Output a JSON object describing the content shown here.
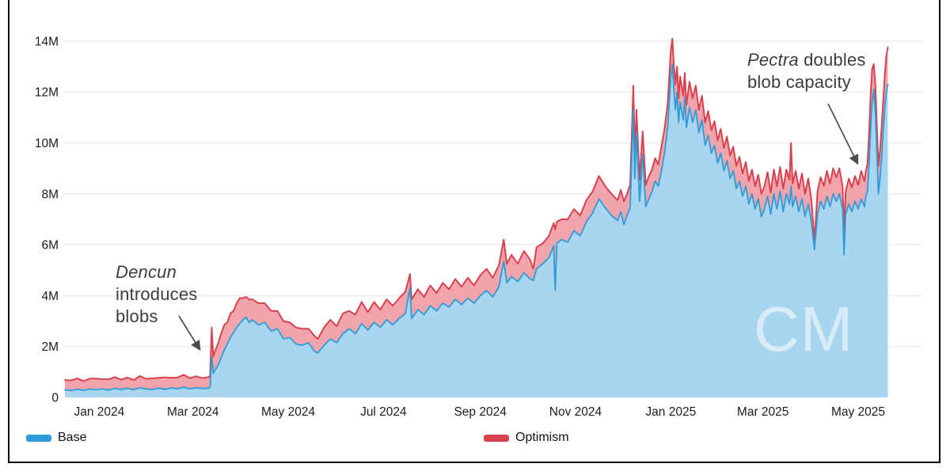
{
  "chart_data": {
    "type": "area",
    "stacked": true,
    "x_unit": "days since Jan 1, 2024",
    "y_unit": "transactions (millions)",
    "ylim": [
      0,
      14.5
    ],
    "grid": "horizontal only",
    "legend_position": "bottom",
    "series_names": [
      "Base",
      "Optimism"
    ],
    "x_ticks": [
      {
        "day": 0,
        "label": "Jan 2024"
      },
      {
        "day": 60,
        "label": "Mar 2024"
      },
      {
        "day": 121,
        "label": "May 2024"
      },
      {
        "day": 182,
        "label": "Jul 2024"
      },
      {
        "day": 244,
        "label": "Sep 2024"
      },
      {
        "day": 305,
        "label": "Nov 2024"
      },
      {
        "day": 366,
        "label": "Jan 2025"
      },
      {
        "day": 425,
        "label": "Mar 2025"
      },
      {
        "day": 486,
        "label": "May 2025"
      }
    ],
    "y_ticks": [
      {
        "value": 0,
        "label": "0"
      },
      {
        "value": 2,
        "label": "2M"
      },
      {
        "value": 4,
        "label": "4M"
      },
      {
        "value": 6,
        "label": "6M"
      },
      {
        "value": 8,
        "label": "8M"
      },
      {
        "value": 10,
        "label": "10M"
      },
      {
        "value": 12,
        "label": "12M"
      },
      {
        "value": 14,
        "label": "14M"
      }
    ],
    "points": [
      [
        -22,
        0.3,
        0.38
      ],
      [
        -18,
        0.27,
        0.4
      ],
      [
        -14,
        0.32,
        0.43
      ],
      [
        -10,
        0.28,
        0.36
      ],
      [
        -6,
        0.33,
        0.41
      ],
      [
        -2,
        0.3,
        0.44
      ],
      [
        2,
        0.34,
        0.38
      ],
      [
        6,
        0.29,
        0.42
      ],
      [
        10,
        0.35,
        0.45
      ],
      [
        14,
        0.31,
        0.39
      ],
      [
        18,
        0.36,
        0.42
      ],
      [
        22,
        0.3,
        0.38
      ],
      [
        26,
        0.38,
        0.46
      ],
      [
        30,
        0.33,
        0.4
      ],
      [
        34,
        0.31,
        0.44
      ],
      [
        38,
        0.36,
        0.41
      ],
      [
        42,
        0.32,
        0.47
      ],
      [
        46,
        0.37,
        0.4
      ],
      [
        50,
        0.34,
        0.44
      ],
      [
        54,
        0.4,
        0.49
      ],
      [
        58,
        0.34,
        0.42
      ],
      [
        62,
        0.38,
        0.45
      ],
      [
        66,
        0.35,
        0.41
      ],
      [
        70,
        0.36,
        0.44
      ],
      [
        71,
        0.4,
        0.45
      ],
      [
        72,
        1.6,
        1.15
      ],
      [
        73,
        0.95,
        0.65
      ],
      [
        74,
        1.05,
        0.75
      ],
      [
        76,
        1.25,
        0.85
      ],
      [
        78,
        1.55,
        0.95
      ],
      [
        80,
        1.85,
        1.0
      ],
      [
        82,
        2.1,
        0.85
      ],
      [
        84,
        2.35,
        0.95
      ],
      [
        86,
        2.55,
        0.85
      ],
      [
        88,
        2.75,
        0.95
      ],
      [
        90,
        2.9,
        1.0
      ],
      [
        92,
        3.05,
        0.85
      ],
      [
        94,
        3.15,
        0.8
      ],
      [
        96,
        2.95,
        0.9
      ],
      [
        98,
        3.05,
        0.8
      ],
      [
        102,
        2.85,
        0.85
      ],
      [
        106,
        2.95,
        0.75
      ],
      [
        110,
        2.6,
        0.8
      ],
      [
        114,
        2.7,
        0.7
      ],
      [
        118,
        2.3,
        0.7
      ],
      [
        122,
        2.35,
        0.6
      ],
      [
        126,
        2.1,
        0.65
      ],
      [
        130,
        2.05,
        0.65
      ],
      [
        134,
        2.15,
        0.55
      ],
      [
        138,
        1.8,
        0.6
      ],
      [
        140,
        1.75,
        0.55
      ],
      [
        144,
        2.05,
        0.7
      ],
      [
        148,
        2.3,
        0.75
      ],
      [
        152,
        2.15,
        0.65
      ],
      [
        156,
        2.5,
        0.8
      ],
      [
        160,
        2.7,
        0.7
      ],
      [
        164,
        2.5,
        0.75
      ],
      [
        168,
        2.9,
        0.85
      ],
      [
        172,
        2.65,
        0.7
      ],
      [
        176,
        2.95,
        0.8
      ],
      [
        180,
        2.75,
        0.7
      ],
      [
        184,
        3.05,
        0.8
      ],
      [
        188,
        2.85,
        0.75
      ],
      [
        192,
        3.1,
        0.8
      ],
      [
        196,
        3.3,
        0.85
      ],
      [
        199,
        4.3,
        0.55
      ],
      [
        200,
        3.1,
        0.75
      ],
      [
        204,
        3.45,
        0.8
      ],
      [
        208,
        3.25,
        0.7
      ],
      [
        212,
        3.6,
        0.8
      ],
      [
        216,
        3.4,
        0.7
      ],
      [
        220,
        3.7,
        0.8
      ],
      [
        224,
        3.55,
        0.7
      ],
      [
        228,
        3.85,
        0.8
      ],
      [
        232,
        3.65,
        0.7
      ],
      [
        236,
        3.9,
        0.8
      ],
      [
        240,
        3.7,
        0.7
      ],
      [
        244,
        4.0,
        0.8
      ],
      [
        248,
        4.2,
        0.85
      ],
      [
        252,
        3.95,
        0.75
      ],
      [
        256,
        4.35,
        0.85
      ],
      [
        259,
        5.35,
        0.85
      ],
      [
        261,
        4.5,
        0.75
      ],
      [
        264,
        4.75,
        0.85
      ],
      [
        268,
        4.55,
        0.7
      ],
      [
        272,
        4.9,
        0.85
      ],
      [
        276,
        4.65,
        0.75
      ],
      [
        278,
        4.6,
        0.45
      ],
      [
        280,
        5.05,
        0.85
      ],
      [
        284,
        5.25,
        0.8
      ],
      [
        288,
        5.5,
        0.85
      ],
      [
        291,
        5.95,
        0.9
      ],
      [
        292,
        4.2,
        2.4
      ],
      [
        293,
        6.05,
        0.85
      ],
      [
        296,
        6.2,
        0.8
      ],
      [
        300,
        6.1,
        0.9
      ],
      [
        304,
        6.55,
        0.85
      ],
      [
        308,
        6.35,
        0.8
      ],
      [
        312,
        6.9,
        0.85
      ],
      [
        316,
        7.25,
        0.85
      ],
      [
        320,
        7.8,
        0.9
      ],
      [
        324,
        7.45,
        0.85
      ],
      [
        328,
        7.15,
        0.85
      ],
      [
        332,
        6.95,
        0.8
      ],
      [
        334,
        7.3,
        0.85
      ],
      [
        336,
        6.8,
        0.9
      ],
      [
        338,
        7.15,
        0.85
      ],
      [
        340,
        7.45,
        0.9
      ],
      [
        342,
        11.3,
        0.95
      ],
      [
        343,
        8.6,
        0.9
      ],
      [
        344,
        10.4,
        0.9
      ],
      [
        346,
        7.7,
        0.85
      ],
      [
        348,
        9.55,
        0.9
      ],
      [
        350,
        7.5,
        0.85
      ],
      [
        352,
        7.8,
        0.9
      ],
      [
        354,
        8.1,
        0.85
      ],
      [
        356,
        8.5,
        0.9
      ],
      [
        358,
        8.3,
        0.85
      ],
      [
        360,
        8.9,
        0.95
      ],
      [
        362,
        9.6,
        0.95
      ],
      [
        364,
        10.6,
        0.95
      ],
      [
        366,
        12.6,
        1.0
      ],
      [
        367,
        13.1,
        1.0
      ],
      [
        368,
        12.1,
        0.95
      ],
      [
        369,
        11.3,
        1.0
      ],
      [
        370,
        12.0,
        1.0
      ],
      [
        371,
        10.8,
        0.95
      ],
      [
        372,
        11.6,
        1.0
      ],
      [
        374,
        10.9,
        0.95
      ],
      [
        375,
        11.8,
        0.95
      ],
      [
        376,
        10.6,
        0.9
      ],
      [
        378,
        11.4,
        1.0
      ],
      [
        380,
        10.8,
        0.95
      ],
      [
        382,
        11.3,
        0.95
      ],
      [
        384,
        10.4,
        0.9
      ],
      [
        386,
        10.9,
        0.95
      ],
      [
        388,
        9.9,
        0.9
      ],
      [
        390,
        10.3,
        0.95
      ],
      [
        392,
        9.6,
        0.9
      ],
      [
        394,
        9.9,
        0.95
      ],
      [
        396,
        9.2,
        0.9
      ],
      [
        398,
        9.6,
        0.95
      ],
      [
        400,
        8.9,
        0.9
      ],
      [
        402,
        9.3,
        0.95
      ],
      [
        404,
        8.6,
        0.9
      ],
      [
        406,
        8.9,
        0.95
      ],
      [
        408,
        8.2,
        0.9
      ],
      [
        410,
        8.5,
        0.95
      ],
      [
        412,
        7.9,
        0.9
      ],
      [
        414,
        8.3,
        0.95
      ],
      [
        416,
        7.6,
        0.9
      ],
      [
        418,
        8.0,
        0.95
      ],
      [
        420,
        7.4,
        0.9
      ],
      [
        422,
        7.8,
        0.95
      ],
      [
        424,
        7.1,
        0.9
      ],
      [
        426,
        7.4,
        0.9
      ],
      [
        428,
        7.9,
        0.95
      ],
      [
        430,
        7.2,
        0.85
      ],
      [
        432,
        8.0,
        0.95
      ],
      [
        434,
        7.4,
        0.9
      ],
      [
        436,
        8.1,
        0.95
      ],
      [
        438,
        7.3,
        0.9
      ],
      [
        440,
        8.0,
        0.95
      ],
      [
        442,
        7.6,
        0.95
      ],
      [
        443,
        8.3,
        1.7
      ],
      [
        444,
        7.5,
        0.9
      ],
      [
        446,
        7.9,
        1.0
      ],
      [
        448,
        7.3,
        0.9
      ],
      [
        450,
        7.8,
        1.0
      ],
      [
        452,
        7.1,
        0.9
      ],
      [
        454,
        7.6,
        1.0
      ],
      [
        456,
        6.9,
        0.9
      ],
      [
        458,
        5.8,
        0.35
      ],
      [
        460,
        7.2,
        0.9
      ],
      [
        462,
        7.7,
        0.95
      ],
      [
        464,
        7.4,
        0.9
      ],
      [
        466,
        7.9,
        1.0
      ],
      [
        468,
        7.5,
        0.9
      ],
      [
        470,
        8.0,
        1.0
      ],
      [
        472,
        7.7,
        0.95
      ],
      [
        474,
        8.0,
        1.0
      ],
      [
        476,
        7.4,
        0.9
      ],
      [
        477,
        5.6,
        0.9
      ],
      [
        478,
        7.2,
        0.9
      ],
      [
        480,
        7.6,
        1.0
      ],
      [
        482,
        7.3,
        0.95
      ],
      [
        484,
        7.7,
        1.0
      ],
      [
        486,
        7.4,
        0.95
      ],
      [
        488,
        7.8,
        1.1
      ],
      [
        490,
        7.5,
        1.0
      ],
      [
        491,
        7.9,
        1.0
      ],
      [
        492,
        8.1,
        1.1
      ],
      [
        493,
        9.2,
        1.2
      ],
      [
        494,
        10.6,
        1.3
      ],
      [
        495,
        11.6,
        1.3
      ],
      [
        496,
        12.1,
        1.0
      ],
      [
        497,
        11.2,
        1.1
      ],
      [
        498,
        9.6,
        1.0
      ],
      [
        499,
        8.0,
        1.1
      ],
      [
        500,
        8.6,
        1.1
      ],
      [
        501,
        9.4,
        1.2
      ],
      [
        502,
        10.4,
        1.2
      ],
      [
        503,
        11.3,
        1.3
      ],
      [
        504,
        12.0,
        1.4
      ],
      [
        505,
        12.3,
        1.45
      ]
    ]
  },
  "colors": {
    "base_line": "#2D9CD8",
    "base_fill": "#A8D5EF",
    "optimism_line": "#D8414D",
    "optimism_fill": "#F2A4AC",
    "grid": "#F0F0F0",
    "axis_text": "#1C1C1C",
    "annotation_text": "#3D3D3D",
    "arrow": "#4D4D4D"
  },
  "annotations": {
    "dencun": {
      "italic_word": "Dencun",
      "line2": "introduces",
      "line3": "blobs"
    },
    "pectra": {
      "italic_word": "Pectra",
      "line1_rest": " doubles",
      "line2": "blob capacity"
    }
  },
  "legend": [
    {
      "label": "Base",
      "color": "#2D9CD8"
    },
    {
      "label": "Optimism",
      "color": "#D8414D"
    }
  ],
  "watermark": {
    "text": "CM"
  }
}
